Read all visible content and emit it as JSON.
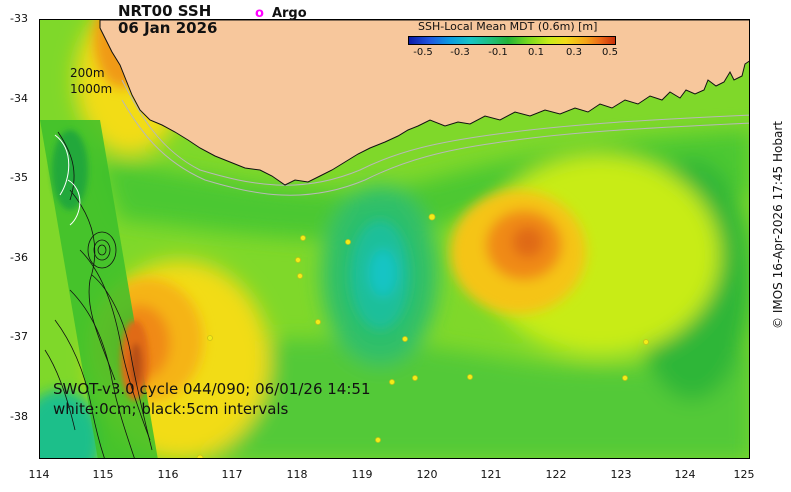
{
  "title": {
    "line1": "NRT00 SSH",
    "line2": "06 Jan 2026"
  },
  "legend": {
    "argo_marker": "o",
    "argo_label": "Argo"
  },
  "colorbar": {
    "title": "SSH-Local Mean MDT (0.6m) [m]",
    "ticks": [
      "-0.5",
      "-0.3",
      "-0.1",
      "0.1",
      "0.3",
      "0.5"
    ]
  },
  "depth_contours": {
    "shallow": "200m",
    "deep": "1000m"
  },
  "axes": {
    "y_ticks": [
      "-33",
      "-34",
      "-35",
      "-36",
      "-37",
      "-38"
    ],
    "x_ticks": [
      "114",
      "115",
      "116",
      "117",
      "118",
      "119",
      "120",
      "121",
      "122",
      "123",
      "124",
      "125"
    ]
  },
  "swath_caption": "SWOT-v3.0 cycle 044/090; 06/01/26 14:51",
  "interval_caption": "white:0cm; black:5cm intervals",
  "credit": "© IMOS 16-Apr-2026 17:45 Hobart",
  "colors": {
    "land": "#f7c79c",
    "ocean_base": "#7fd82a",
    "high_anomaly": "#f08a18",
    "low_anomaly": "#17c4c4",
    "argo": "#ff00ff"
  }
}
